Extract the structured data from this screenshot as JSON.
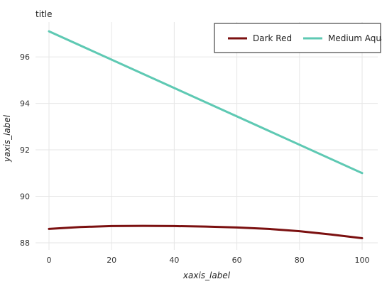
{
  "chart_data": {
    "type": "line",
    "title": "title",
    "xlabel": "xaxis_label",
    "ylabel": "yaxis_label",
    "xlim": [
      0,
      100
    ],
    "ylim": [
      88,
      97.5
    ],
    "x_ticks": [
      0,
      20,
      40,
      60,
      80,
      100
    ],
    "y_ticks": [
      88,
      90,
      92,
      94,
      96
    ],
    "grid": true,
    "legend_position": "top-right",
    "series": [
      {
        "name": "Dark Red",
        "color": "#7b1010",
        "x": [
          0,
          10,
          20,
          30,
          40,
          50,
          60,
          70,
          80,
          90,
          100
        ],
        "y": [
          88.6,
          88.68,
          88.72,
          88.73,
          88.72,
          88.7,
          88.66,
          88.6,
          88.5,
          88.36,
          88.2
        ]
      },
      {
        "name": "Medium Aqua",
        "color": "#5ec9b3",
        "x": [
          0,
          100
        ],
        "y": [
          97.1,
          91.0
        ]
      }
    ]
  }
}
